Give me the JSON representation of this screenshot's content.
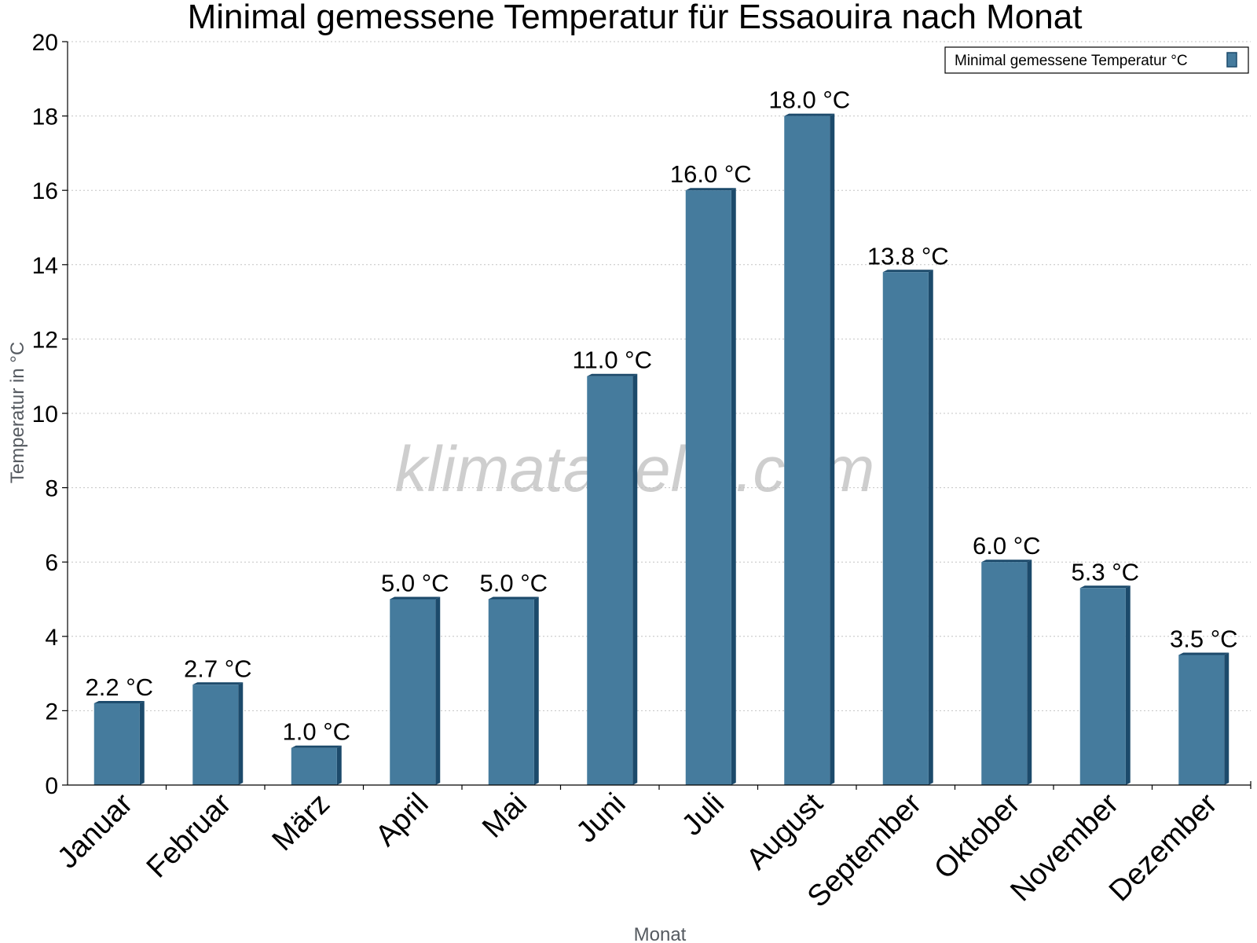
{
  "chart_data": {
    "type": "bar",
    "title": "Minimal gemessene Temperatur für Essaouira nach Monat",
    "xlabel": "Monat",
    "ylabel": "Temperatur in °C",
    "categories": [
      "Januar",
      "Februar",
      "März",
      "April",
      "Mai",
      "Juni",
      "Juli",
      "August",
      "September",
      "Oktober",
      "November",
      "Dezember"
    ],
    "series": [
      {
        "name": "Minimal gemessene Temperatur °C",
        "values": [
          2.2,
          2.7,
          1.0,
          5.0,
          5.0,
          11.0,
          16.0,
          18.0,
          13.8,
          6.0,
          5.3,
          3.5
        ],
        "labels": [
          "2.2 °C",
          "2.7 °C",
          "1.0 °C",
          "5.0 °C",
          "5.0 °C",
          "11.0 °C",
          "16.0 °C",
          "18.0 °C",
          "13.8 °C",
          "6.0 °C",
          "5.3 °C",
          "3.5 °C"
        ],
        "color": "#457b9d",
        "edge_color": "#1c4a6b"
      }
    ],
    "ylim": [
      0,
      20
    ],
    "yticks": [
      "0",
      "2",
      "4",
      "6",
      "8",
      "10",
      "12",
      "14",
      "16",
      "18",
      "20"
    ],
    "grid": "horizontal dotted",
    "legend_position": "top-right"
  },
  "watermark": "klimatabelle.com"
}
